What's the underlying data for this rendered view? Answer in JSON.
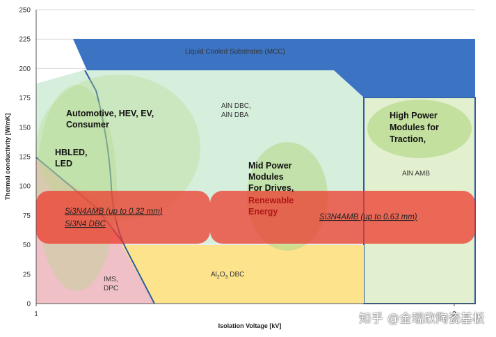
{
  "chart_data": {
    "type": "area",
    "xlabel": "Isolation Voltage [kV]",
    "ylabel": "Thermal conductivity [W/mK]",
    "xlim": [
      1,
      2.05
    ],
    "ylim": [
      0,
      250
    ],
    "x_ticks": [
      "1",
      "2"
    ],
    "y_ticks": [
      "0",
      "25",
      "50",
      "75",
      "100",
      "125",
      "150",
      "175",
      "200",
      "225",
      "250"
    ],
    "grid": "horizontal",
    "regions": [
      {
        "name": "Liquid Cooled Substrates (MCC)",
        "color": "#3c73c2"
      },
      {
        "name": "AlN DBC, AlN DBA",
        "color": "#d2ecd8"
      },
      {
        "name": "AlN AMB",
        "color": "#e3f0cf"
      },
      {
        "name": "IMS, DPC",
        "color": "#efc0c6"
      },
      {
        "name": "Al2O3 DBC",
        "color": "#fde38c"
      }
    ],
    "annotations": [
      "Automotive, HEV, EV, Consumer",
      "HBLED, LED",
      "Mid Power Modules For Drives, Renewable Energy",
      "High Power Modules for Traction,"
    ]
  },
  "labels": {
    "mcc": "Liquid Cooled Substrates (MCC)",
    "aln_dbc_1": "AlN DBC,",
    "aln_dbc_2": "AlN DBA",
    "aln_amb": "AlN AMB",
    "ims_1": "IMS,",
    "ims_2": "DPC",
    "al2o3_main": "Al",
    "al2o3_sub": "2",
    "al2o3_main2": "O",
    "al2o3_sub2": "3",
    "al2o3_rest": " DBC",
    "auto_1": "Automotive, HEV, EV,",
    "auto_2": "Consumer",
    "hbled_1": "HBLED,",
    "hbled_2": "LED",
    "mid_1": "Mid Power",
    "mid_2": "Modules",
    "mid_3": "For Drives,",
    "mid_4": "Renewable",
    "mid_5": "Energy",
    "hp_1": "High Power",
    "hp_2": "Modules for",
    "hp_3": "Traction,",
    "si3n4_amb_left": "Si3N4AMB (up to 0.32 mm)",
    "si3n4_dbc_left": "Si3N4 DBC",
    "si3n4_amb_right": "Si3N4AMB (up to 0.63 mm)"
  },
  "watermark": "知乎 @金瑞欣陶瓷基板"
}
